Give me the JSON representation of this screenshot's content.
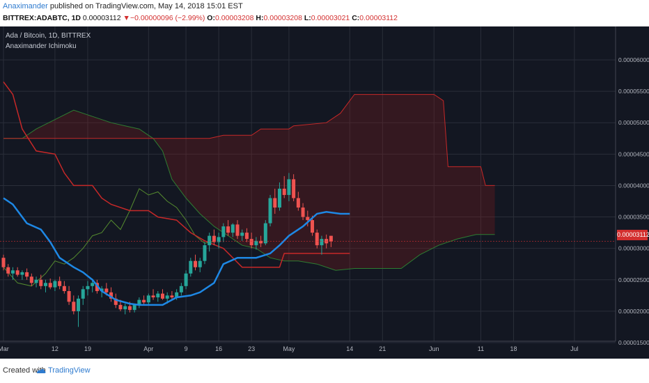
{
  "header": {
    "author": "Anaximander",
    "published": "published on TradingView.com, May 14, 2018 15:01 EST",
    "symbol": "BITTREX:ADABTC, 1D",
    "last": "0.00003112",
    "change": "−0.00000096 (−2.99%)",
    "o_label": "O:",
    "o": "0.00003208",
    "h_label": "H:",
    "h": "0.00003208",
    "l_label": "L:",
    "l": "0.00003021",
    "c_label": "C:",
    "c": "0.00003112"
  },
  "legend": {
    "title": "Ada / Bitcoin, 1D, BITTREX",
    "indicator": "Anaximander Ichimoku"
  },
  "price_tag": "0.00003112",
  "footer": {
    "created_with": "Created with",
    "brand": "TradingView"
  },
  "colors": {
    "background": "#131722",
    "up": "#26a69a",
    "down": "#ef5350",
    "conversion": "#1e88e5",
    "base": "#c62828",
    "span_a": "#2e7d32",
    "span_b": "#c62828",
    "lagging": "#558b2f"
  },
  "chart_data": {
    "type": "candlestick",
    "price_axis": [
      1.5e-05,
      2e-05,
      2.5e-05,
      3e-05,
      3.5e-05,
      4e-05,
      4.5e-05,
      5e-05,
      5.5e-05,
      6e-05
    ],
    "price_axis_labels": [
      "0.00001500",
      "0.00002000",
      "0.00002500",
      "0.00003000",
      "0.00003500",
      "0.00004000",
      "0.00004500",
      "0.00005000",
      "0.00005500",
      "0.00006000"
    ],
    "time_axis_labels": [
      {
        "label": "Mar",
        "day": 1
      },
      {
        "label": "12",
        "day": 12
      },
      {
        "label": "19",
        "day": 19
      },
      {
        "label": "Apr",
        "day": 32
      },
      {
        "label": "9",
        "day": 40
      },
      {
        "label": "16",
        "day": 47
      },
      {
        "label": "23",
        "day": 54
      },
      {
        "label": "May",
        "day": 62
      },
      {
        "label": "14",
        "day": 75
      },
      {
        "label": "21",
        "day": 82
      },
      {
        "label": "Jun",
        "day": 93
      },
      {
        "label": "11",
        "day": 103
      },
      {
        "label": "18",
        "day": 110
      },
      {
        "label": "Jul",
        "day": 123
      }
    ],
    "candles_ohlc": [
      [
        2.85e-05,
        2.9e-05,
        2.65e-05,
        2.7e-05
      ],
      [
        2.7e-05,
        2.75e-05,
        2.55e-05,
        2.6e-05
      ],
      [
        2.6e-05,
        2.7e-05,
        2.5e-05,
        2.65e-05
      ],
      [
        2.65e-05,
        2.7e-05,
        2.55e-05,
        2.58e-05
      ],
      [
        2.58e-05,
        2.65e-05,
        2.5e-05,
        2.62e-05
      ],
      [
        2.62e-05,
        2.68e-05,
        2.5e-05,
        2.55e-05
      ],
      [
        2.55e-05,
        2.6e-05,
        2.4e-05,
        2.45e-05
      ],
      [
        2.45e-05,
        2.55e-05,
        2.38e-05,
        2.5e-05
      ],
      [
        2.5e-05,
        2.58e-05,
        2.35e-05,
        2.4e-05
      ],
      [
        2.4e-05,
        2.5e-05,
        2.3e-05,
        2.45e-05
      ],
      [
        2.45e-05,
        2.52e-05,
        2.35e-05,
        2.38e-05
      ],
      [
        2.38e-05,
        2.5e-05,
        2.32e-05,
        2.48e-05
      ],
      [
        2.48e-05,
        2.55e-05,
        2.35e-05,
        2.4e-05
      ],
      [
        2.4e-05,
        2.48e-05,
        2.28e-05,
        2.32e-05
      ],
      [
        2.32e-05,
        2.4e-05,
        2.1e-05,
        2.15e-05
      ],
      [
        2.15e-05,
        2.25e-05,
        1.95e-05,
        2e-05
      ],
      [
        2e-05,
        2.25e-05,
        1.75e-05,
        2.2e-05
      ],
      [
        2.2e-05,
        2.4e-05,
        2.1e-05,
        2.35e-05
      ],
      [
        2.35e-05,
        2.48e-05,
        2.25e-05,
        2.4e-05
      ],
      [
        2.4e-05,
        2.52e-05,
        2.3e-05,
        2.45e-05
      ],
      [
        2.45e-05,
        2.5e-05,
        2.28e-05,
        2.32e-05
      ],
      [
        2.32e-05,
        2.4e-05,
        2.22e-05,
        2.36e-05
      ],
      [
        2.36e-05,
        2.45e-05,
        2.25e-05,
        2.3e-05
      ],
      [
        2.3e-05,
        2.38e-05,
        2.15e-05,
        2.2e-05
      ],
      [
        2.2e-05,
        2.28e-05,
        2.05e-05,
        2.1e-05
      ],
      [
        2.1e-05,
        2.18e-05,
        2e-05,
        2.03e-05
      ],
      [
        2.03e-05,
        2.12e-05,
        1.95e-05,
        2.08e-05
      ],
      [
        2.08e-05,
        2.15e-05,
        1.98e-05,
        2.02e-05
      ],
      [
        2.02e-05,
        2.12e-05,
        1.98e-05,
        2.1e-05
      ],
      [
        2.1e-05,
        2.22e-05,
        2.05e-05,
        2.18e-05
      ],
      [
        2.18e-05,
        2.25e-05,
        2.1e-05,
        2.14e-05
      ],
      [
        2.14e-05,
        2.28e-05,
        2.1e-05,
        2.25e-05
      ],
      [
        2.25e-05,
        2.35e-05,
        2.18e-05,
        2.22e-05
      ],
      [
        2.22e-05,
        2.32e-05,
        2.15e-05,
        2.28e-05
      ],
      [
        2.28e-05,
        2.35e-05,
        2.18e-05,
        2.2e-05
      ],
      [
        2.2e-05,
        2.3e-05,
        2.12e-05,
        2.25e-05
      ],
      [
        2.25e-05,
        2.32e-05,
        2.18e-05,
        2.22e-05
      ],
      [
        2.22e-05,
        2.35e-05,
        2.18e-05,
        2.3e-05
      ],
      [
        2.3e-05,
        2.45e-05,
        2.25e-05,
        2.4e-05
      ],
      [
        2.4e-05,
        2.65e-05,
        2.35e-05,
        2.6e-05
      ],
      [
        2.6e-05,
        2.85e-05,
        2.55e-05,
        2.8e-05
      ],
      [
        2.8e-05,
        2.9e-05,
        2.65e-05,
        2.7e-05
      ],
      [
        2.7e-05,
        2.85e-05,
        2.62e-05,
        2.8e-05
      ],
      [
        2.8e-05,
        3.1e-05,
        2.75e-05,
        3.05e-05
      ],
      [
        3.05e-05,
        3.25e-05,
        2.95e-05,
        3.2e-05
      ],
      [
        3.2e-05,
        3.3e-05,
        3.05e-05,
        3.1e-05
      ],
      [
        3.1e-05,
        3.25e-05,
        3e-05,
        3.18e-05
      ],
      [
        3.18e-05,
        3.4e-05,
        3.1e-05,
        3.35e-05
      ],
      [
        3.35e-05,
        3.45e-05,
        3.2e-05,
        3.25e-05
      ],
      [
        3.25e-05,
        3.4e-05,
        3.18e-05,
        3.38e-05
      ],
      [
        3.38e-05,
        3.45e-05,
        3.15e-05,
        3.2e-05
      ],
      [
        3.2e-05,
        3.3e-05,
        3.12e-05,
        3.25e-05
      ],
      [
        3.25e-05,
        3.32e-05,
        3.1e-05,
        3.15e-05
      ],
      [
        3.15e-05,
        3.25e-05,
        3e-05,
        3.05e-05
      ],
      [
        3.05e-05,
        3.18e-05,
        2.98e-05,
        3.12e-05
      ],
      [
        3.12e-05,
        3.2e-05,
        3.02e-05,
        3.08e-05
      ],
      [
        3.08e-05,
        3.45e-05,
        3.05e-05,
        3.4e-05
      ],
      [
        3.4e-05,
        3.85e-05,
        3.35e-05,
        3.8e-05
      ],
      [
        3.8e-05,
        3.95e-05,
        3.55e-05,
        3.65e-05
      ],
      [
        3.65e-05,
        4.05e-05,
        3.6e-05,
        3.95e-05
      ],
      [
        3.95e-05,
        4.15e-05,
        3.8e-05,
        3.85e-05
      ],
      [
        3.85e-05,
        4.2e-05,
        3.75e-05,
        4.1e-05
      ],
      [
        4.1e-05,
        4.18e-05,
        3.75e-05,
        3.8e-05
      ],
      [
        3.8e-05,
        3.9e-05,
        3.6e-05,
        3.65e-05
      ],
      [
        3.65e-05,
        3.72e-05,
        3.45e-05,
        3.5e-05
      ],
      [
        3.5e-05,
        3.6e-05,
        3.35e-05,
        3.45e-05
      ],
      [
        3.45e-05,
        3.52e-05,
        3.2e-05,
        3.25e-05
      ],
      [
        3.25e-05,
        3.3e-05,
        3e-05,
        3.05e-05
      ],
      [
        3.05e-05,
        3.2e-05,
        2.9e-05,
        3.15e-05
      ],
      [
        3.15e-05,
        3.22e-05,
        3e-05,
        3.08e-05
      ],
      [
        3.2e-05,
        3.2e-05,
        3.02e-05,
        3.11e-05
      ]
    ],
    "conversion_line": [
      [
        1,
        3.8e-05
      ],
      [
        3,
        3.7e-05
      ],
      [
        6,
        3.4e-05
      ],
      [
        9,
        3.3e-05
      ],
      [
        11,
        3.1e-05
      ],
      [
        13,
        2.85e-05
      ],
      [
        16,
        2.7e-05
      ],
      [
        18,
        2.62e-05
      ],
      [
        20,
        2.5e-05
      ],
      [
        22,
        2.32e-05
      ],
      [
        25,
        2.18e-05
      ],
      [
        28,
        2.12e-05
      ],
      [
        30,
        2.1e-05
      ],
      [
        35,
        2.1e-05
      ],
      [
        38,
        2.22e-05
      ],
      [
        41,
        2.25e-05
      ],
      [
        43,
        2.3e-05
      ],
      [
        46,
        2.45e-05
      ],
      [
        48,
        2.75e-05
      ],
      [
        51,
        2.85e-05
      ],
      [
        55,
        2.85e-05
      ],
      [
        58,
        2.92e-05
      ],
      [
        60,
        3.05e-05
      ],
      [
        62,
        3.2e-05
      ],
      [
        65,
        3.35e-05
      ],
      [
        68,
        3.55e-05
      ],
      [
        70,
        3.58e-05
      ],
      [
        73,
        3.55e-05
      ],
      [
        75,
        3.55e-05
      ]
    ],
    "base_line": [
      [
        1,
        5.65e-05
      ],
      [
        3,
        5.45e-05
      ],
      [
        5,
        4.9e-05
      ],
      [
        8,
        4.55e-05
      ],
      [
        12,
        4.5e-05
      ],
      [
        14,
        4.2e-05
      ],
      [
        16,
        4e-05
      ],
      [
        20,
        4e-05
      ],
      [
        22,
        3.8e-05
      ],
      [
        24,
        3.7e-05
      ],
      [
        28,
        3.6e-05
      ],
      [
        32,
        3.6e-05
      ],
      [
        34,
        3.5e-05
      ],
      [
        38,
        3.45e-05
      ],
      [
        41,
        3.25e-05
      ],
      [
        44,
        3.12e-05
      ],
      [
        48,
        3e-05
      ],
      [
        50,
        2.85e-05
      ],
      [
        52,
        2.7e-05
      ],
      [
        60,
        2.7e-05
      ],
      [
        61,
        2.92e-05
      ],
      [
        75,
        2.92e-05
      ]
    ],
    "span_a": [
      [
        1,
        4.75e-05
      ],
      [
        5,
        4.75e-05
      ],
      [
        8,
        4.9e-05
      ],
      [
        12,
        5.05e-05
      ],
      [
        16,
        5.2e-05
      ],
      [
        20,
        5.1e-05
      ],
      [
        24,
        5e-05
      ],
      [
        27,
        4.95e-05
      ],
      [
        30,
        4.9e-05
      ],
      [
        33,
        4.75e-05
      ],
      [
        35,
        4.55e-05
      ],
      [
        37,
        4.1e-05
      ],
      [
        40,
        3.8e-05
      ],
      [
        43,
        3.55e-05
      ],
      [
        46,
        3.35e-05
      ],
      [
        49,
        3.2e-05
      ],
      [
        52,
        3.05e-05
      ],
      [
        55,
        3e-05
      ],
      [
        58,
        2.85e-05
      ],
      [
        61,
        2.8e-05
      ],
      [
        64,
        2.8e-05
      ],
      [
        68,
        2.75e-05
      ],
      [
        72,
        2.65e-05
      ],
      [
        76,
        2.68e-05
      ],
      [
        80,
        2.68e-05
      ],
      [
        86,
        2.68e-05
      ],
      [
        90,
        2.9e-05
      ],
      [
        94,
        3.05e-05
      ],
      [
        98,
        3.15e-05
      ],
      [
        102,
        3.22e-05
      ],
      [
        106,
        3.22e-05
      ]
    ],
    "span_b": [
      [
        1,
        4.75e-05
      ],
      [
        10,
        4.75e-05
      ],
      [
        20,
        4.75e-05
      ],
      [
        30,
        4.75e-05
      ],
      [
        40,
        4.75e-05
      ],
      [
        45,
        4.75e-05
      ],
      [
        48,
        4.8e-05
      ],
      [
        54,
        4.8e-05
      ],
      [
        56,
        4.9e-05
      ],
      [
        62,
        4.9e-05
      ],
      [
        63,
        4.95e-05
      ],
      [
        70,
        5e-05
      ],
      [
        73,
        5.15e-05
      ],
      [
        76,
        5.45e-05
      ],
      [
        93,
        5.45e-05
      ],
      [
        95,
        5.35e-05
      ],
      [
        96,
        4.3e-05
      ],
      [
        103,
        4.3e-05
      ],
      [
        104,
        4e-05
      ],
      [
        106,
        4e-05
      ]
    ],
    "lagging_span": [
      [
        1,
        2.7e-05
      ],
      [
        4,
        2.45e-05
      ],
      [
        7,
        2.4e-05
      ],
      [
        10,
        2.6e-05
      ],
      [
        12,
        2.8e-05
      ],
      [
        14,
        2.75e-05
      ],
      [
        16,
        2.85e-05
      ],
      [
        18,
        3e-05
      ],
      [
        20,
        3.2e-05
      ],
      [
        22,
        3.25e-05
      ],
      [
        24,
        3.45e-05
      ],
      [
        26,
        3.3e-05
      ],
      [
        28,
        3.6e-05
      ],
      [
        30,
        3.95e-05
      ],
      [
        32,
        3.85e-05
      ],
      [
        34,
        3.9e-05
      ],
      [
        36,
        3.75e-05
      ],
      [
        38,
        3.65e-05
      ],
      [
        40,
        3.45e-05
      ],
      [
        42,
        3.2e-05
      ],
      [
        44,
        3.08e-05
      ],
      [
        46,
        3.11e-05
      ]
    ],
    "last_price": 3.112e-05
  }
}
